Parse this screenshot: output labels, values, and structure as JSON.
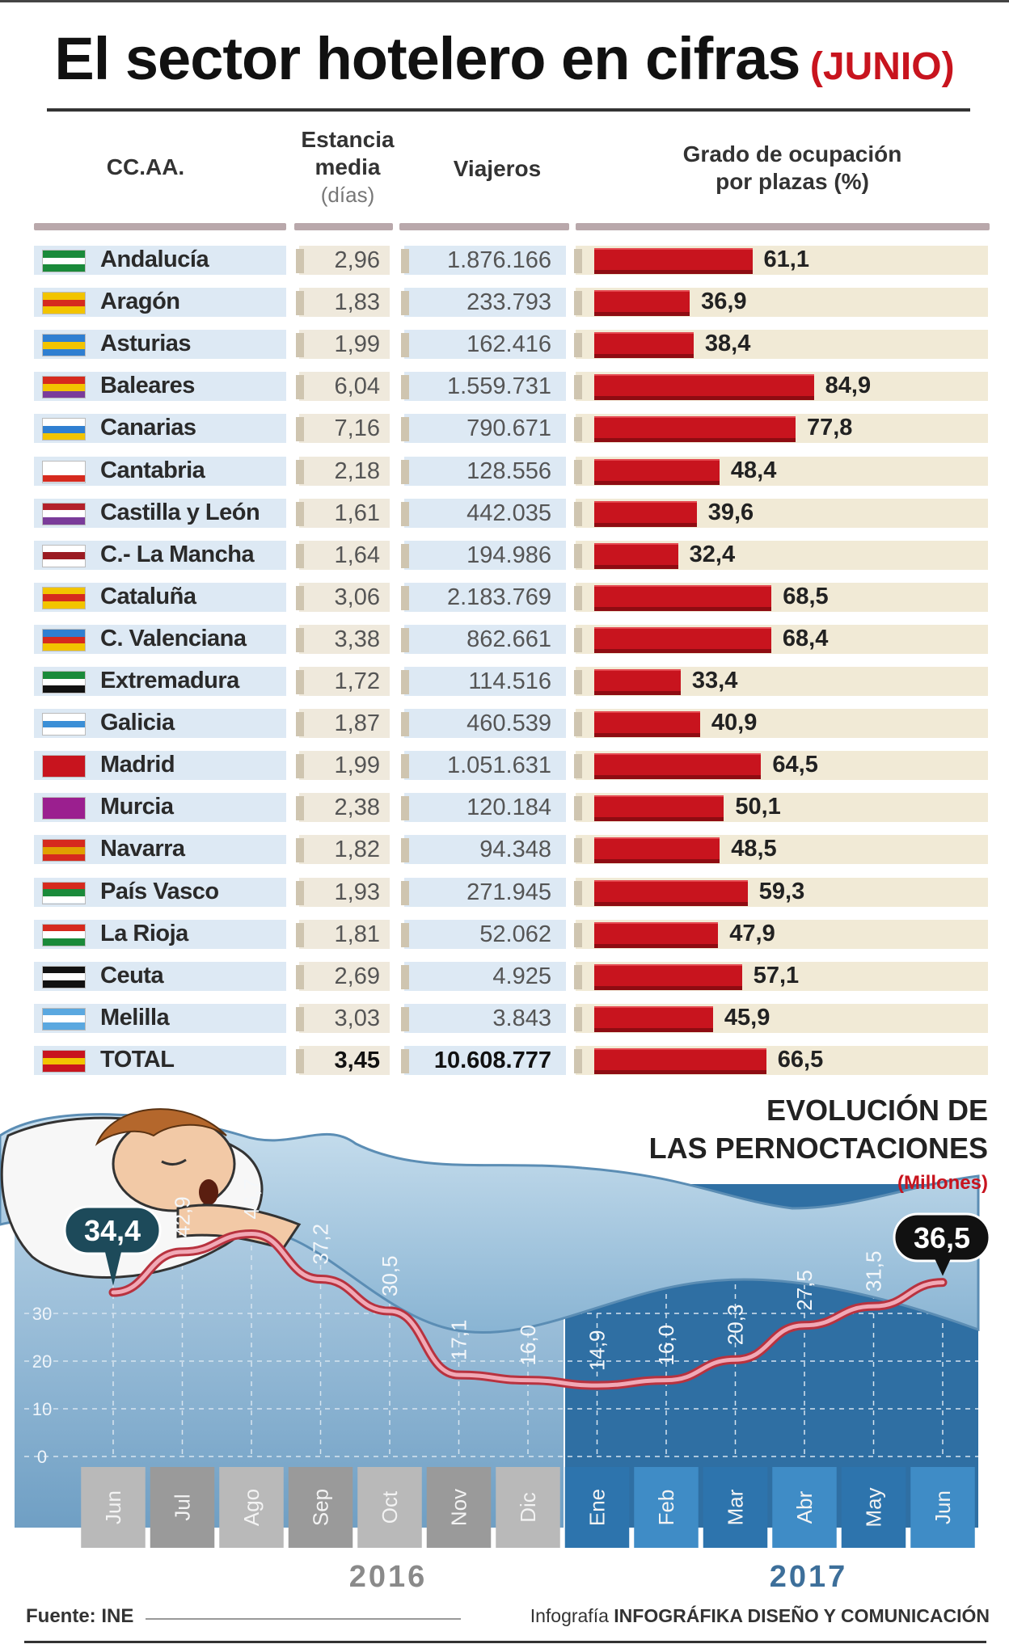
{
  "title": "El sector hotelero en cifras",
  "subtitle": "(JUNIO)",
  "table": {
    "headers": {
      "region": "CC.AA.",
      "stay_line1": "Estancia",
      "stay_line2": "media",
      "stay_unit": "(días)",
      "travelers": "Viajeros",
      "occupancy_line1": "Grado de ocupación",
      "occupancy_line2": "por plazas (%)"
    },
    "rows": [
      {
        "region": "Andalucía",
        "stay": "2,96",
        "travelers": "1.876.166",
        "occupancy": 61.1,
        "occupancy_label": "61,1",
        "flag": [
          "#1a8a3a",
          "#ffffff",
          "#1a8a3a"
        ]
      },
      {
        "region": "Aragón",
        "stay": "1,83",
        "travelers": "233.793",
        "occupancy": 36.9,
        "occupancy_label": "36,9",
        "flag": [
          "#f2c400",
          "#d62a1e",
          "#f2c400"
        ]
      },
      {
        "region": "Asturias",
        "stay": "1,99",
        "travelers": "162.416",
        "occupancy": 38.4,
        "occupancy_label": "38,4",
        "flag": [
          "#2f7fd1",
          "#f2c400",
          "#2f7fd1"
        ]
      },
      {
        "region": "Baleares",
        "stay": "6,04",
        "travelers": "1.559.731",
        "occupancy": 84.9,
        "occupancy_label": "84,9",
        "flag": [
          "#d62a1e",
          "#f2c400",
          "#7a3c9a"
        ]
      },
      {
        "region": "Canarias",
        "stay": "7,16",
        "travelers": "790.671",
        "occupancy": 77.8,
        "occupancy_label": "77,8",
        "flag": [
          "#ffffff",
          "#2f7fd1",
          "#f2c400"
        ]
      },
      {
        "region": "Cantabria",
        "stay": "2,18",
        "travelers": "128.556",
        "occupancy": 48.4,
        "occupancy_label": "48,4",
        "flag": [
          "#ffffff",
          "#ffffff",
          "#d62a1e"
        ]
      },
      {
        "region": "Castilla y León",
        "stay": "1,61",
        "travelers": "442.035",
        "occupancy": 39.6,
        "occupancy_label": "39,6",
        "flag": [
          "#b3202a",
          "#ffffff",
          "#7a3c9a"
        ]
      },
      {
        "region": "C.- La Mancha",
        "stay": "1,64",
        "travelers": "194.986",
        "occupancy": 32.4,
        "occupancy_label": "32,4",
        "flag": [
          "#ffffff",
          "#9a1b22",
          "#ffffff"
        ]
      },
      {
        "region": "Cataluña",
        "stay": "3,06",
        "travelers": "2.183.769",
        "occupancy": 68.5,
        "occupancy_label": "68,5",
        "flag": [
          "#f2c400",
          "#d62a1e",
          "#f2c400"
        ]
      },
      {
        "region": "C. Valenciana",
        "stay": "3,38",
        "travelers": "862.661",
        "occupancy": 68.4,
        "occupancy_label": "68,4",
        "flag": [
          "#2f7fd1",
          "#d62a1e",
          "#f2c400"
        ]
      },
      {
        "region": "Extremadura",
        "stay": "1,72",
        "travelers": "114.516",
        "occupancy": 33.4,
        "occupancy_label": "33,4",
        "flag": [
          "#1a8a3a",
          "#ffffff",
          "#111111"
        ]
      },
      {
        "region": "Galicia",
        "stay": "1,87",
        "travelers": "460.539",
        "occupancy": 40.9,
        "occupancy_label": "40,9",
        "flag": [
          "#ffffff",
          "#3b8fd6",
          "#ffffff"
        ]
      },
      {
        "region": "Madrid",
        "stay": "1,99",
        "travelers": "1.051.631",
        "occupancy": 64.5,
        "occupancy_label": "64,5",
        "flag": [
          "#c8141e",
          "#c8141e",
          "#c8141e"
        ]
      },
      {
        "region": "Murcia",
        "stay": "2,38",
        "travelers": "120.184",
        "occupancy": 50.1,
        "occupancy_label": "50,1",
        "flag": [
          "#9b1f8f",
          "#9b1f8f",
          "#9b1f8f"
        ]
      },
      {
        "region": "Navarra",
        "stay": "1,82",
        "travelers": "94.348",
        "occupancy": 48.5,
        "occupancy_label": "48,5",
        "flag": [
          "#d62a1e",
          "#e0a000",
          "#d62a1e"
        ]
      },
      {
        "region": "País Vasco",
        "stay": "1,93",
        "travelers": "271.945",
        "occupancy": 59.3,
        "occupancy_label": "59,3",
        "flag": [
          "#d62a1e",
          "#1a8a3a",
          "#ffffff"
        ]
      },
      {
        "region": "La Rioja",
        "stay": "1,81",
        "travelers": "52.062",
        "occupancy": 47.9,
        "occupancy_label": "47,9",
        "flag": [
          "#d62a1e",
          "#ffffff",
          "#1a8a3a"
        ]
      },
      {
        "region": "Ceuta",
        "stay": "2,69",
        "travelers": "4.925",
        "occupancy": 57.1,
        "occupancy_label": "57,1",
        "flag": [
          "#111111",
          "#ffffff",
          "#111111"
        ]
      },
      {
        "region": "Melilla",
        "stay": "3,03",
        "travelers": "3.843",
        "occupancy": 45.9,
        "occupancy_label": "45,9",
        "flag": [
          "#5aa8e0",
          "#ffffff",
          "#5aa8e0"
        ]
      },
      {
        "region": "TOTAL",
        "stay": "3,45",
        "travelers": "10.608.777",
        "occupancy": 66.5,
        "occupancy_label": "66,5",
        "flag": [
          "#c8141e",
          "#f2c400",
          "#c8141e"
        ],
        "total": true
      }
    ]
  },
  "evolution": {
    "title_line1": "EVOLUCIÓN DE",
    "title_line2": "LAS PERNOCTACIONES",
    "unit": "(Millones)",
    "yticks": [
      "0",
      "10",
      "20",
      "30"
    ],
    "years": [
      "2016",
      "2017"
    ]
  },
  "chart_data": [
    {
      "type": "bar",
      "title": "Grado de ocupación por plazas (%)",
      "categories": [
        "Andalucía",
        "Aragón",
        "Asturias",
        "Baleares",
        "Canarias",
        "Cantabria",
        "Castilla y León",
        "C.- La Mancha",
        "Cataluña",
        "C. Valenciana",
        "Extremadura",
        "Galicia",
        "Madrid",
        "Murcia",
        "Navarra",
        "País Vasco",
        "La Rioja",
        "Ceuta",
        "Melilla",
        "TOTAL"
      ],
      "values": [
        61.1,
        36.9,
        38.4,
        84.9,
        77.8,
        48.4,
        39.6,
        32.4,
        68.5,
        68.4,
        33.4,
        40.9,
        64.5,
        50.1,
        48.5,
        59.3,
        47.9,
        57.1,
        45.9,
        66.5
      ],
      "orientation": "horizontal",
      "ylim": [
        0,
        100
      ]
    },
    {
      "type": "line",
      "title": "EVOLUCIÓN DE LAS PERNOCTACIONES",
      "ylabel": "(Millones)",
      "categories": [
        "Jun",
        "Jul",
        "Ago",
        "Sep",
        "Oct",
        "Nov",
        "Dic",
        "Ene",
        "Feb",
        "Mar",
        "Abr",
        "May",
        "Jun"
      ],
      "values": [
        34.4,
        42.9,
        46.7,
        37.2,
        30.5,
        17.1,
        16.0,
        14.9,
        16.0,
        20.3,
        27.5,
        31.5,
        36.5
      ],
      "value_labels": [
        "34,4",
        "42,9",
        "46,7",
        "37,2",
        "30,5",
        "17,1",
        "16,0",
        "14,9",
        "16,0",
        "20,3",
        "27,5",
        "31,5",
        "36,5"
      ],
      "ylim": [
        0,
        50
      ],
      "grid": true,
      "highlighted": [
        "34,4",
        "36,5"
      ]
    }
  ]
}
